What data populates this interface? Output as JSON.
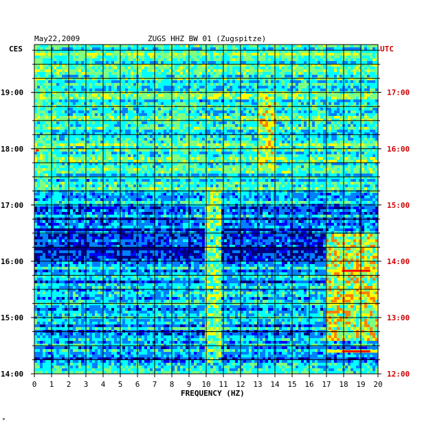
{
  "header": {
    "date": "May22,2009",
    "station": "ZUGS HHZ BW 01 (Zugspitze)"
  },
  "labels": {
    "left_tz": "CES",
    "right_tz": "UTC",
    "xlabel": "FREQUENCY (HZ)",
    "footer_mark": "*"
  },
  "colors": {
    "background": "#00007f",
    "grid": "#000000",
    "utc_text": "#cc0000",
    "ces_text": "#000000"
  },
  "chart_data": {
    "type": "heatmap",
    "title": "ZUGS HHZ BW 01 (Zugspitze)",
    "date": "May22,2009",
    "xlabel": "FREQUENCY (HZ)",
    "xlim": [
      0,
      20
    ],
    "x_ticks": [
      "0",
      "1",
      "2",
      "3",
      "4",
      "5",
      "6",
      "7",
      "8",
      "9",
      "10",
      "11",
      "12",
      "13",
      "14",
      "15",
      "16",
      "17",
      "18",
      "19",
      "20"
    ],
    "y_range_ces_hours": [
      14.0,
      19.85
    ],
    "y_ticks_left": [
      {
        "label": "19:00",
        "hour": 19
      },
      {
        "label": "18:00",
        "hour": 18
      },
      {
        "label": "17:00",
        "hour": 17
      },
      {
        "label": "16:00",
        "hour": 16
      },
      {
        "label": "15:00",
        "hour": 15
      },
      {
        "label": "14:00",
        "hour": 14
      }
    ],
    "y_ticks_right": [
      {
        "label": "17:00",
        "hour": 19
      },
      {
        "label": "16:00",
        "hour": 18
      },
      {
        "label": "15:00",
        "hour": 17
      },
      {
        "label": "14:00",
        "hour": 16
      },
      {
        "label": "13:00",
        "hour": 15
      },
      {
        "label": "12:00",
        "hour": 14
      }
    ],
    "colorscale": [
      "#00007f",
      "#0000ff",
      "#0080ff",
      "#00ffff",
      "#80ff80",
      "#ffff00",
      "#ff8000",
      "#ff0000"
    ],
    "hot_regions": [
      {
        "f": [
          17.0,
          20.0
        ],
        "hour": [
          14.6,
          16.5
        ],
        "level": 0.75
      },
      {
        "f": [
          13.0,
          14.0
        ],
        "hour": [
          17.6,
          18.9
        ],
        "level": 0.7
      },
      {
        "f": [
          10.0,
          10.8
        ],
        "hour": [
          14.2,
          17.3
        ],
        "level": 0.65
      },
      {
        "f": [
          0.0,
          1.0
        ],
        "hour": [
          17.3,
          19.8
        ],
        "level": 0.55
      },
      {
        "f": [
          8.0,
          9.5
        ],
        "hour": [
          17.5,
          19.0
        ],
        "level": 0.5
      }
    ],
    "bright_lines": [
      {
        "hour": 15.83,
        "f": [
          17.0,
          20.0
        ]
      },
      {
        "hour": 14.4,
        "f": [
          17.0,
          20.0
        ]
      },
      {
        "hour": 17.97,
        "f": [
          0.0,
          0.3
        ]
      }
    ]
  }
}
